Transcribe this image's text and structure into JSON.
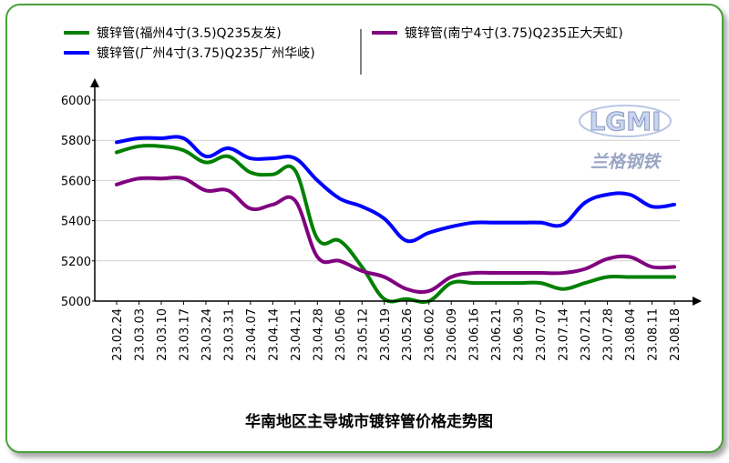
{
  "chart_data": {
    "type": "line",
    "title": "华南地区主导城市镀锌管价格走势图",
    "xlabel": "",
    "ylabel": "",
    "ylim": [
      5000,
      6000
    ],
    "yticks": [
      "6000",
      "5800",
      "5600",
      "5400",
      "5200",
      "5000"
    ],
    "categories": [
      "23.02.24",
      "23.03.03",
      "23.03.10",
      "23.03.17",
      "23.03.24",
      "23.03.31",
      "23.04.07",
      "23.04.14",
      "23.04.21",
      "23.04.28",
      "23.05.06",
      "23.05.12",
      "23.05.19",
      "23.05.26",
      "23.06.02",
      "23.06.09",
      "23.06.16",
      "23.06.21",
      "23.06.30",
      "23.07.07",
      "23.07.14",
      "23.07.21",
      "23.07.28",
      "23.08.04",
      "23.08.11",
      "23.08.18"
    ],
    "series": [
      {
        "name": "镀锌管(福州4寸(3.5)Q235友发)",
        "color": "#008000",
        "values": [
          5740,
          5770,
          5770,
          5750,
          5690,
          5720,
          5640,
          5630,
          5650,
          5310,
          5300,
          5170,
          5010,
          5010,
          5000,
          5090,
          5090,
          5090,
          5090,
          5090,
          5060,
          5090,
          5120,
          5120,
          5120,
          5120
        ]
      },
      {
        "name": "镀锌管(南宁4寸(3.75)Q235正大天虹)",
        "color": "#800080",
        "values": [
          5580,
          5610,
          5610,
          5610,
          5550,
          5550,
          5460,
          5480,
          5500,
          5220,
          5200,
          5150,
          5120,
          5060,
          5050,
          5120,
          5140,
          5140,
          5140,
          5140,
          5140,
          5160,
          5210,
          5220,
          5170,
          5170
        ]
      },
      {
        "name": "镀锌管(广州4寸(3.75)Q235广州华岐)",
        "color": "#0000ff",
        "values": [
          5790,
          5810,
          5810,
          5810,
          5720,
          5760,
          5710,
          5710,
          5710,
          5600,
          5510,
          5470,
          5410,
          5300,
          5340,
          5370,
          5390,
          5390,
          5390,
          5390,
          5380,
          5490,
          5530,
          5530,
          5470,
          5480
        ]
      }
    ],
    "grid": true,
    "legend": "top"
  },
  "watermark": {
    "logo": "LGMI",
    "text": "兰格钢铁"
  }
}
